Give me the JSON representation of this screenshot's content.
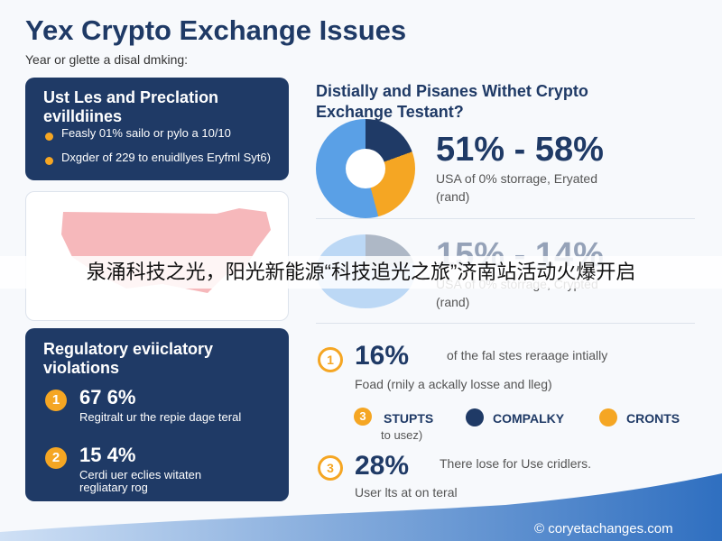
{
  "header": {
    "title": "Yex Crypto Exchange Issues",
    "subtitle": "Year or glette a disal dmking:"
  },
  "left_panels": [
    {
      "title": "Ust Les and Preclation evilldiines",
      "bullets": [
        "Feasly 01% sailo or pylo a 10/10",
        "Dxgder of 229 to enuidllyes Eryfml Syt6)"
      ]
    },
    {
      "title": "Regulatory eviiclatory violations",
      "items": [
        {
          "number": "1",
          "value": "67 6%",
          "text": "Regitralt ur the repie dage teral"
        },
        {
          "number": "2",
          "value": "15 4%",
          "text": "Cerdi uer eclies witaten regliatary rog"
        }
      ]
    }
  ],
  "right": {
    "heading": "Distially and Pisanes Withet Crypto Exchange Testant?",
    "stats": [
      {
        "value": "51% - 58%",
        "text": "USA of 0% storrage, Eryated",
        "note": "(rand)"
      },
      {
        "value": "15% - 14%",
        "text": "USA of 0% storrage, Crypted",
        "note": "(rand)"
      }
    ],
    "items": [
      {
        "number": "1",
        "value": "16%",
        "text": "of the fal stes reraage intially",
        "note": "Foad (rnily a ackally losse and lleg)"
      },
      {
        "number": "3",
        "value": "28%",
        "text": "There lose for Use cridlers.",
        "note": "User lts at on teral"
      }
    ],
    "legend": {
      "number": "3",
      "entries": [
        "STUPTS",
        "COMPALKY",
        "CRONTS"
      ],
      "note": "to usez)"
    }
  },
  "banner": "泉涌科技之光，阳光新能源“科技追光之旅”济南站活动火爆开启",
  "footer": "© coryetachanges.com"
}
